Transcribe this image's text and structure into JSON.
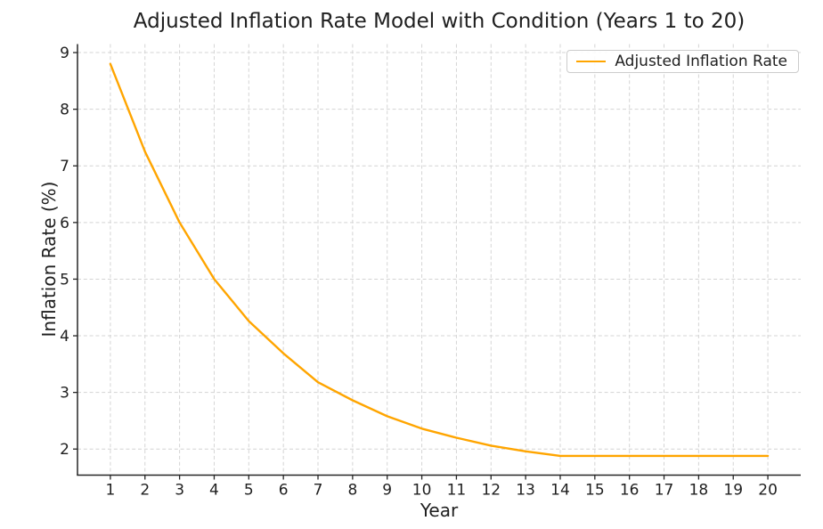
{
  "chart_data": {
    "type": "line",
    "title": "Adjusted Inflation Rate Model with Condition (Years 1 to 20)",
    "xlabel": "Year",
    "ylabel": "Inflation Rate (%)",
    "x": [
      1,
      2,
      3,
      4,
      5,
      6,
      7,
      8,
      9,
      10,
      11,
      12,
      13,
      14,
      15,
      16,
      17,
      18,
      19,
      20
    ],
    "series": [
      {
        "name": "Adjusted Inflation Rate",
        "color": "#FFA500",
        "values": [
          8.8,
          7.25,
          6.0,
          5.0,
          4.26,
          3.69,
          3.18,
          2.86,
          2.58,
          2.36,
          2.2,
          2.06,
          1.96,
          1.88,
          1.88,
          1.88,
          1.88,
          1.88,
          1.88,
          1.88
        ]
      }
    ],
    "xticks": [
      1,
      2,
      3,
      4,
      5,
      6,
      7,
      8,
      9,
      10,
      11,
      12,
      13,
      14,
      15,
      16,
      17,
      18,
      19,
      20
    ],
    "yticks": [
      2,
      3,
      4,
      5,
      6,
      7,
      8,
      9
    ],
    "xlim": [
      0.05,
      20.95
    ],
    "ylim": [
      1.54,
      9.15
    ],
    "grid": true,
    "grid_style": "dashed",
    "legend_position": "upper right",
    "colors": {
      "line": "#FFA500",
      "grid": "#d4d4d4",
      "axis": "#262626",
      "text": "#1f1f1f",
      "legend_border": "#cccccc",
      "background": "#ffffff"
    }
  }
}
